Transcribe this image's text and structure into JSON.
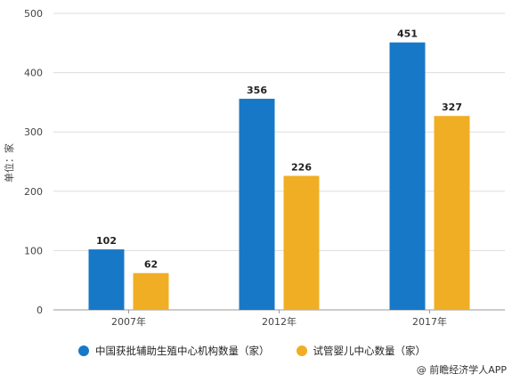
{
  "chart_data": {
    "type": "bar",
    "categories": [
      "2007年",
      "2012年",
      "2017年"
    ],
    "series": [
      {
        "name": "中国获批辅助生殖中心机构数量（家）",
        "values": [
          102,
          356,
          451
        ],
        "color": "#1878c8"
      },
      {
        "name": "试管婴儿中心数量（家）",
        "values": [
          62,
          226,
          327
        ],
        "color": "#f0ae24"
      }
    ],
    "ylabel": "单位：家",
    "ylim": [
      0,
      500
    ],
    "yticks": [
      0,
      100,
      200,
      300,
      400,
      500
    ],
    "grid": true,
    "legend_position": "bottom"
  },
  "source": "@ 前瞻经济学人APP"
}
